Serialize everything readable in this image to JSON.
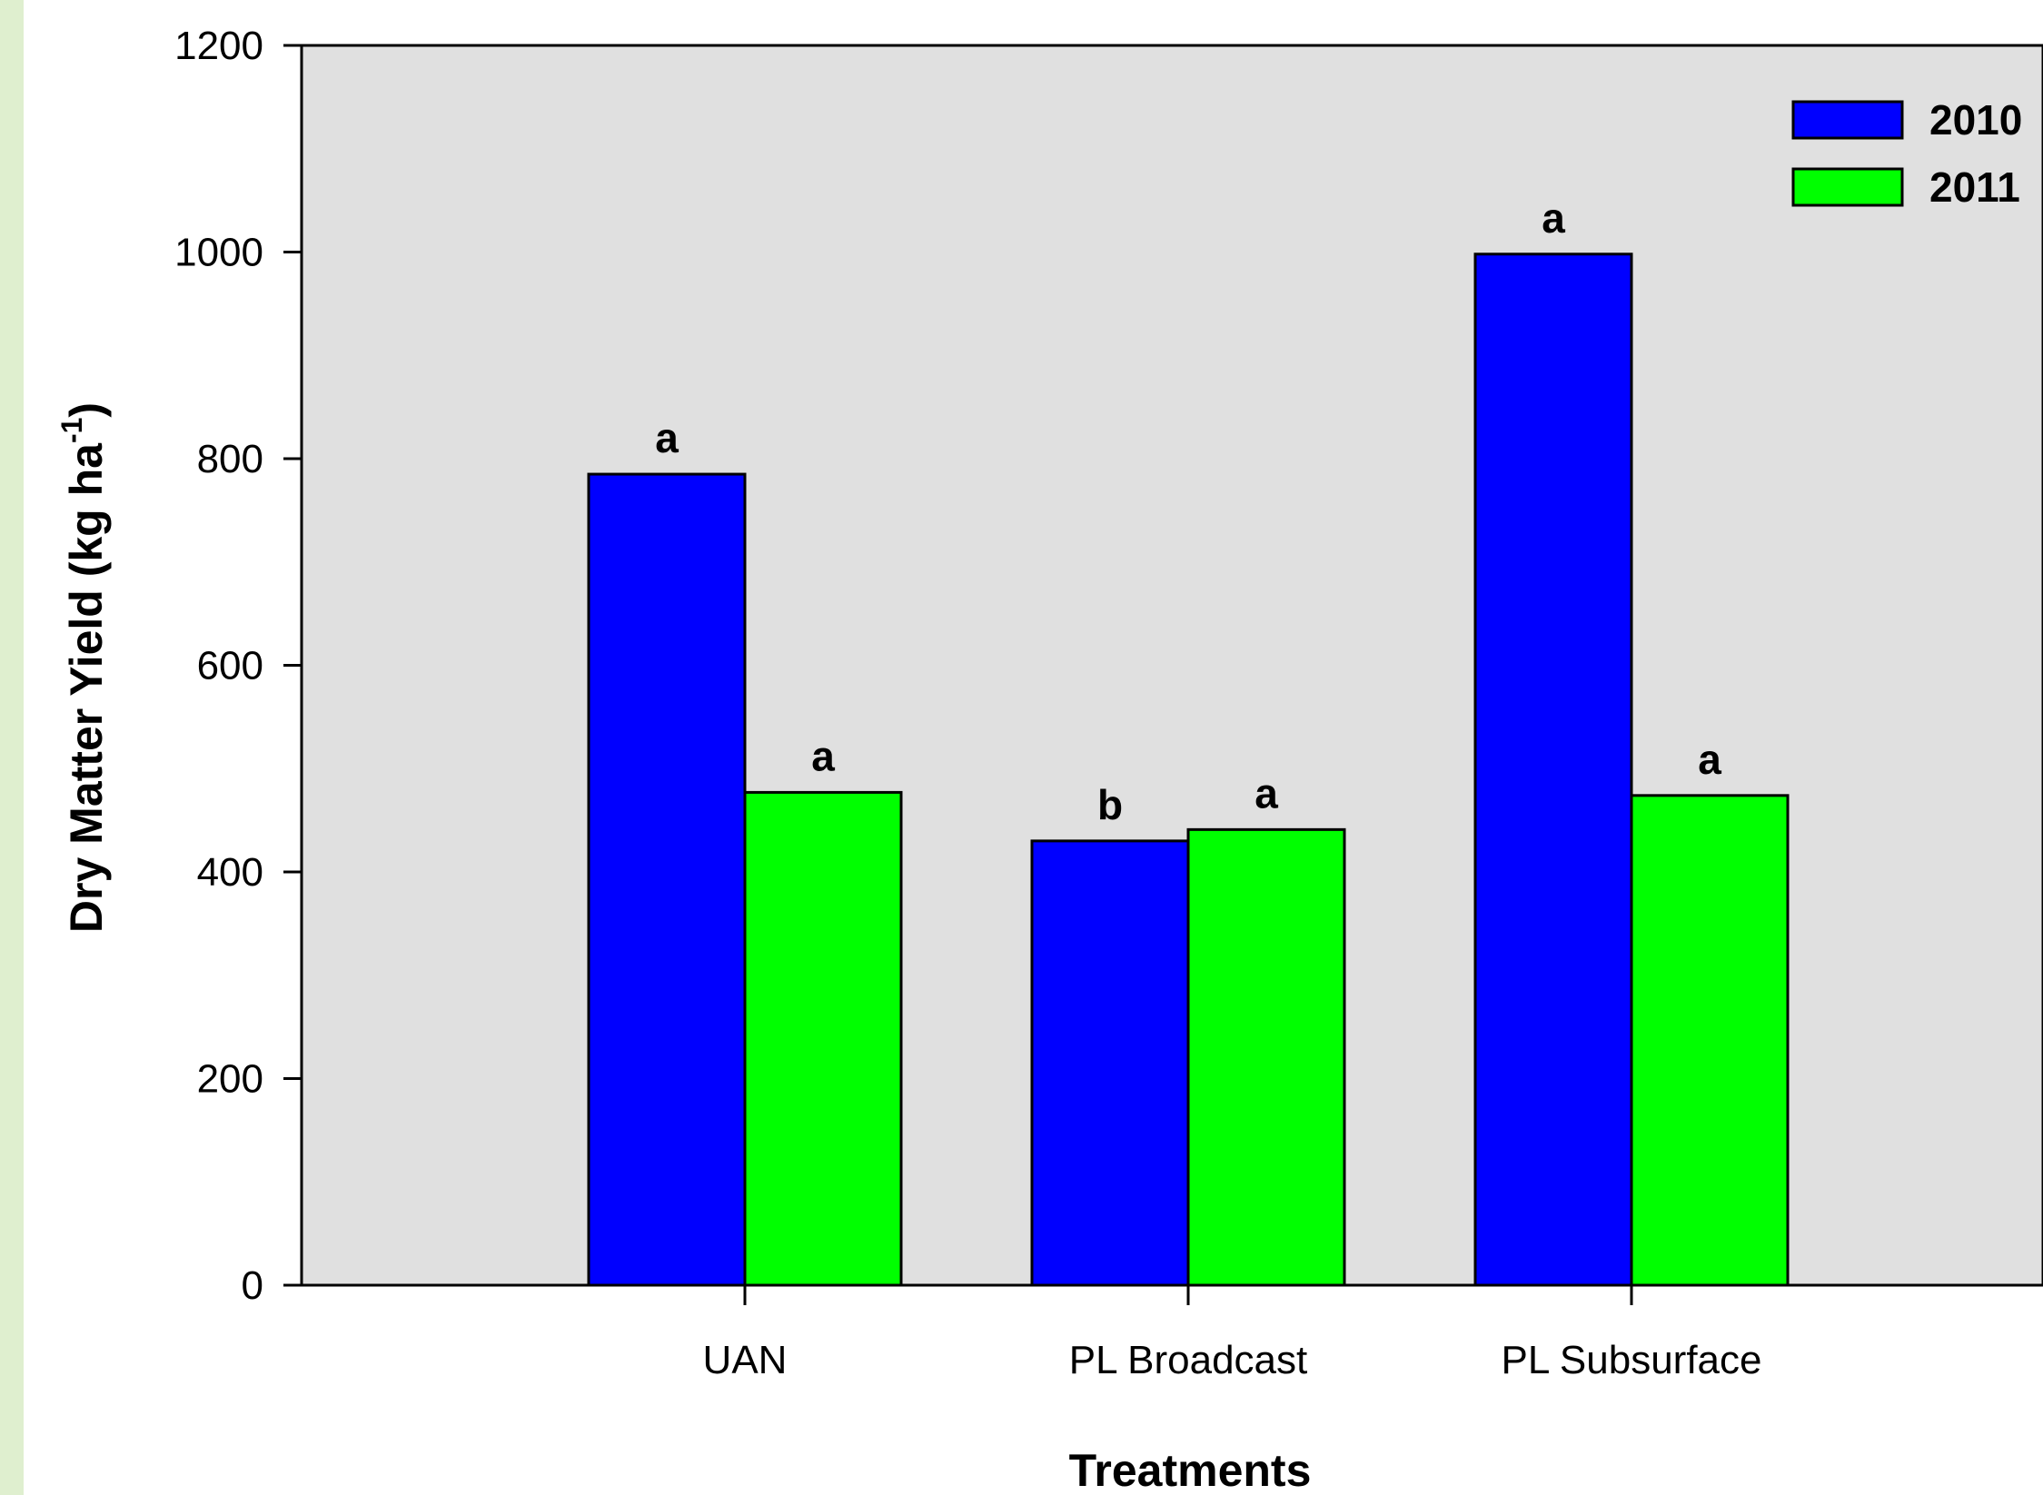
{
  "chart_data": {
    "type": "bar",
    "title": "",
    "xlabel": "Treatments",
    "ylabel": {
      "main": "Dry Matter Yield (kg ha",
      "superscript": "-1",
      "close": ")"
    },
    "ylim": [
      0,
      1200
    ],
    "yticks": [
      0,
      200,
      400,
      600,
      800,
      1000,
      1200
    ],
    "categories": [
      "UAN",
      "PL Broadcast",
      "PL Subsurface"
    ],
    "series": [
      {
        "name": "2010",
        "color": "#0000ff",
        "values": [
          785,
          430,
          998
        ],
        "labels": [
          "a",
          "b",
          "a"
        ]
      },
      {
        "name": "2011",
        "color": "#00ff00",
        "values": [
          477,
          441,
          474
        ],
        "labels": [
          "a",
          "a",
          "a"
        ]
      }
    ],
    "plot_background": "#e0e0e0",
    "legend_position": "top-right",
    "grid": false
  }
}
